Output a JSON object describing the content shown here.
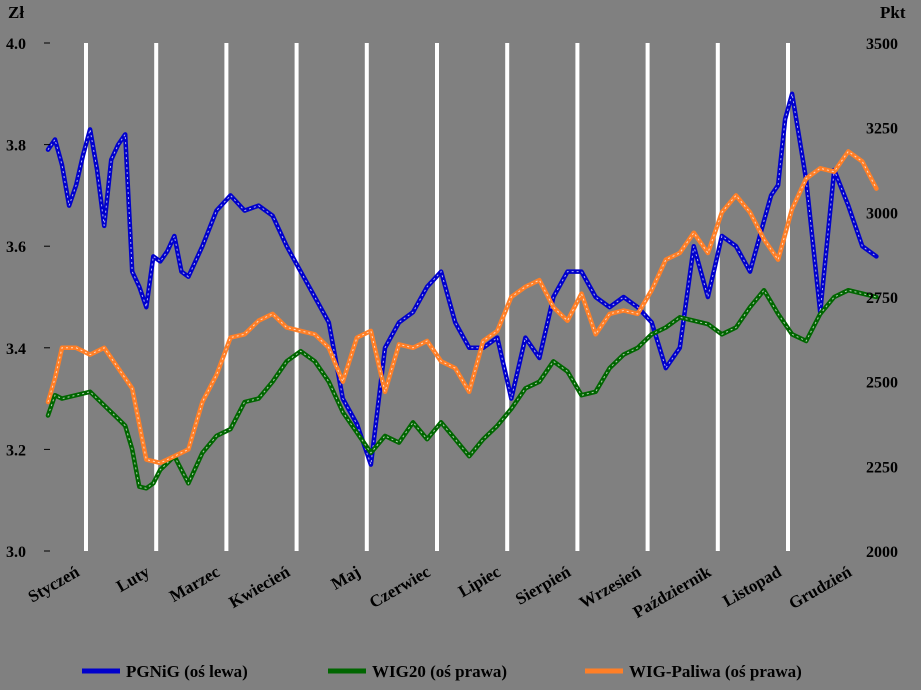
{
  "chart_data": {
    "type": "line",
    "left_axis": {
      "unit_label": "Zł",
      "ylim": [
        3.0,
        4.0
      ],
      "ticks": [
        "3.0",
        "3.2",
        "3.4",
        "3.6",
        "3.8",
        "4.0"
      ]
    },
    "right_axis": {
      "unit_label": "Pkt",
      "ylim": [
        2000,
        3500
      ],
      "ticks": [
        "2000",
        "2250",
        "2500",
        "2750",
        "3000",
        "3250",
        "3500"
      ]
    },
    "months": [
      "Styczeń",
      "Luty",
      "Marzec",
      "Kwiecień",
      "Maj",
      "Czerwiec",
      "Lipiec",
      "Sierpień",
      "Wrzesień",
      "Październik",
      "Listopad",
      "Grudzień"
    ],
    "grid": {
      "vertical_lines": true,
      "horizontal_lines": false
    },
    "legend_position": "bottom",
    "series": [
      {
        "name": "PGNiG (oś lewa)",
        "axis": "left",
        "color": "#0000CC",
        "x": [
          0.0,
          0.1,
          0.2,
          0.3,
          0.4,
          0.5,
          0.6,
          0.7,
          0.8,
          0.9,
          1.0,
          1.1,
          1.2,
          1.3,
          1.4,
          1.5,
          1.6,
          1.7,
          1.8,
          1.9,
          2.0,
          2.2,
          2.4,
          2.6,
          2.8,
          3.0,
          3.2,
          3.4,
          3.6,
          3.8,
          4.0,
          4.2,
          4.4,
          4.6,
          4.8,
          5.0,
          5.2,
          5.4,
          5.6,
          5.8,
          6.0,
          6.2,
          6.4,
          6.6,
          6.8,
          7.0,
          7.2,
          7.4,
          7.6,
          7.8,
          8.0,
          8.2,
          8.4,
          8.6,
          8.8,
          9.0,
          9.2,
          9.4,
          9.6,
          9.8,
          10.0,
          10.2,
          10.3,
          10.4,
          10.5,
          10.6,
          10.8,
          11.0,
          11.2,
          11.4,
          11.6,
          11.8
        ],
        "values": [
          3.79,
          3.81,
          3.76,
          3.68,
          3.72,
          3.78,
          3.83,
          3.75,
          3.64,
          3.77,
          3.8,
          3.82,
          3.55,
          3.52,
          3.48,
          3.58,
          3.57,
          3.59,
          3.62,
          3.55,
          3.54,
          3.6,
          3.67,
          3.7,
          3.67,
          3.68,
          3.66,
          3.6,
          3.55,
          3.5,
          3.45,
          3.3,
          3.25,
          3.17,
          3.4,
          3.45,
          3.47,
          3.52,
          3.55,
          3.45,
          3.4,
          3.4,
          3.42,
          3.3,
          3.42,
          3.38,
          3.5,
          3.55,
          3.55,
          3.5,
          3.48,
          3.5,
          3.48,
          3.45,
          3.36,
          3.4,
          3.6,
          3.5,
          3.62,
          3.6,
          3.55,
          3.65,
          3.7,
          3.72,
          3.85,
          3.9,
          3.73,
          3.47,
          3.75,
          3.68,
          3.6,
          3.58
        ]
      },
      {
        "name": "WIG20 (oś prawa)",
        "axis": "right",
        "color": "#006600",
        "x": [
          0.0,
          0.1,
          0.2,
          0.4,
          0.6,
          0.8,
          1.0,
          1.1,
          1.2,
          1.3,
          1.4,
          1.5,
          1.6,
          1.8,
          2.0,
          2.2,
          2.4,
          2.6,
          2.8,
          3.0,
          3.2,
          3.4,
          3.6,
          3.8,
          4.0,
          4.2,
          4.4,
          4.6,
          4.8,
          5.0,
          5.2,
          5.4,
          5.6,
          5.8,
          6.0,
          6.2,
          6.4,
          6.6,
          6.8,
          7.0,
          7.2,
          7.4,
          7.6,
          7.8,
          8.0,
          8.2,
          8.4,
          8.6,
          8.8,
          9.0,
          9.2,
          9.4,
          9.6,
          9.8,
          10.0,
          10.2,
          10.4,
          10.6,
          10.8,
          11.0,
          11.2,
          11.4,
          11.6,
          11.8
        ],
        "values": [
          2400,
          2460,
          2450,
          2460,
          2470,
          2430,
          2390,
          2370,
          2300,
          2190,
          2185,
          2200,
          2240,
          2280,
          2200,
          2290,
          2340,
          2360,
          2440,
          2450,
          2500,
          2560,
          2590,
          2560,
          2500,
          2410,
          2350,
          2290,
          2340,
          2320,
          2380,
          2330,
          2380,
          2330,
          2280,
          2330,
          2370,
          2420,
          2480,
          2500,
          2560,
          2530,
          2460,
          2470,
          2540,
          2580,
          2600,
          2640,
          2660,
          2690,
          2680,
          2670,
          2640,
          2660,
          2720,
          2770,
          2700,
          2640,
          2620,
          2700,
          2750,
          2770,
          2760,
          2750
        ]
      },
      {
        "name": "WIG-Paliwa (oś prawa)",
        "axis": "right",
        "color": "#FF7F27",
        "x": [
          0.0,
          0.1,
          0.2,
          0.4,
          0.6,
          0.8,
          1.0,
          1.2,
          1.4,
          1.6,
          1.8,
          2.0,
          2.2,
          2.4,
          2.6,
          2.8,
          3.0,
          3.2,
          3.4,
          3.6,
          3.8,
          4.0,
          4.2,
          4.4,
          4.6,
          4.8,
          5.0,
          5.2,
          5.4,
          5.6,
          5.8,
          6.0,
          6.2,
          6.4,
          6.6,
          6.8,
          7.0,
          7.2,
          7.4,
          7.6,
          7.8,
          8.0,
          8.2,
          8.4,
          8.6,
          8.8,
          9.0,
          9.2,
          9.4,
          9.6,
          9.8,
          10.0,
          10.2,
          10.4,
          10.6,
          10.8,
          11.0,
          11.2,
          11.4,
          11.6,
          11.8
        ],
        "values": [
          2440,
          2510,
          2600,
          2600,
          2580,
          2600,
          2540,
          2480,
          2270,
          2260,
          2280,
          2300,
          2440,
          2520,
          2630,
          2640,
          2680,
          2700,
          2660,
          2650,
          2640,
          2600,
          2500,
          2630,
          2650,
          2470,
          2610,
          2600,
          2620,
          2560,
          2540,
          2470,
          2620,
          2650,
          2750,
          2780,
          2800,
          2720,
          2680,
          2760,
          2640,
          2700,
          2710,
          2700,
          2770,
          2860,
          2880,
          2940,
          2880,
          3000,
          3050,
          3000,
          2920,
          2860,
          3010,
          3100,
          3130,
          3120,
          3180,
          3150,
          3070
        ]
      }
    ]
  }
}
